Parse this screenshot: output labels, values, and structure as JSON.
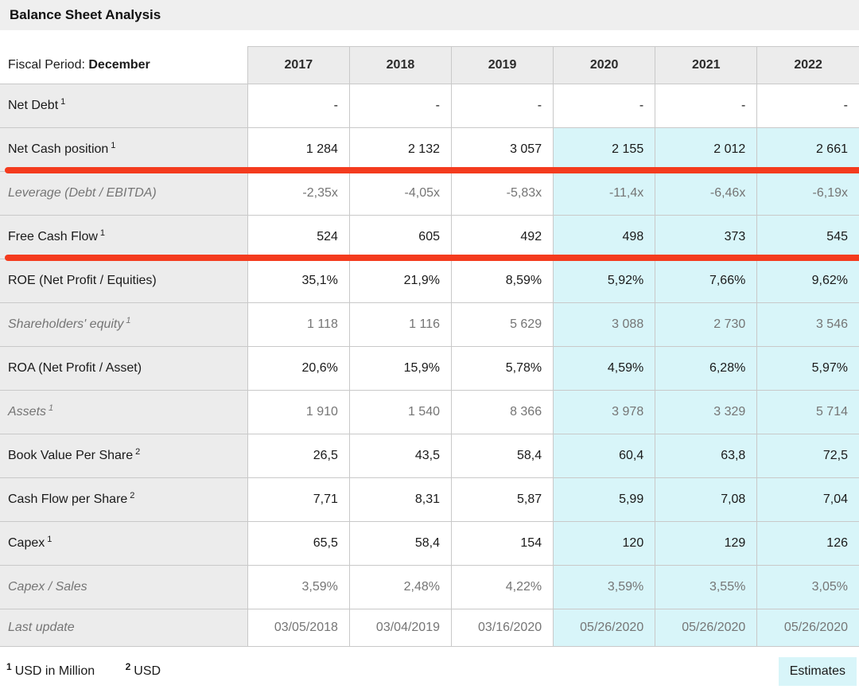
{
  "header": {
    "title": "Balance Sheet Analysis"
  },
  "table": {
    "fiscal_period_label": "Fiscal Period:",
    "fiscal_period_value": "December",
    "years": [
      "2017",
      "2018",
      "2019",
      "2020",
      "2021",
      "2022"
    ],
    "estimate_start_col": 3,
    "rows": [
      {
        "label": "Net Debt",
        "footnote_marker": "1",
        "muted": false,
        "estimate_highlight": false,
        "red_underline": false,
        "values": [
          "-",
          "-",
          "-",
          "-",
          "-",
          "-"
        ]
      },
      {
        "label": "Net Cash position",
        "footnote_marker": "1",
        "muted": false,
        "estimate_highlight": true,
        "red_underline": true,
        "values": [
          "1 284",
          "2 132",
          "3 057",
          "2 155",
          "2 012",
          "2 661"
        ]
      },
      {
        "label": "Leverage (Debt / EBITDA)",
        "footnote_marker": "",
        "muted": true,
        "estimate_highlight": true,
        "red_underline": false,
        "values": [
          "-2,35x",
          "-4,05x",
          "-5,83x",
          "-11,4x",
          "-6,46x",
          "-6,19x"
        ]
      },
      {
        "label": "Free Cash Flow",
        "footnote_marker": "1",
        "muted": false,
        "estimate_highlight": true,
        "red_underline": true,
        "values": [
          "524",
          "605",
          "492",
          "498",
          "373",
          "545"
        ]
      },
      {
        "label": "ROE (Net Profit / Equities)",
        "footnote_marker": "",
        "muted": false,
        "estimate_highlight": true,
        "red_underline": false,
        "values": [
          "35,1%",
          "21,9%",
          "8,59%",
          "5,92%",
          "7,66%",
          "9,62%"
        ]
      },
      {
        "label": "Shareholders' equity",
        "footnote_marker": "1",
        "muted": true,
        "estimate_highlight": true,
        "red_underline": false,
        "values": [
          "1 118",
          "1 116",
          "5 629",
          "3 088",
          "2 730",
          "3 546"
        ]
      },
      {
        "label": "ROA (Net Profit / Asset)",
        "footnote_marker": "",
        "muted": false,
        "estimate_highlight": true,
        "red_underline": false,
        "values": [
          "20,6%",
          "15,9%",
          "5,78%",
          "4,59%",
          "6,28%",
          "5,97%"
        ]
      },
      {
        "label": "Assets",
        "footnote_marker": "1",
        "muted": true,
        "estimate_highlight": true,
        "red_underline": false,
        "values": [
          "1 910",
          "1 540",
          "8 366",
          "3 978",
          "3 329",
          "5 714"
        ]
      },
      {
        "label": "Book Value Per Share",
        "footnote_marker": "2",
        "muted": false,
        "estimate_highlight": true,
        "red_underline": false,
        "values": [
          "26,5",
          "43,5",
          "58,4",
          "60,4",
          "63,8",
          "72,5"
        ]
      },
      {
        "label": "Cash Flow per Share",
        "footnote_marker": "2",
        "muted": false,
        "estimate_highlight": true,
        "red_underline": false,
        "values": [
          "7,71",
          "8,31",
          "5,87",
          "5,99",
          "7,08",
          "7,04"
        ]
      },
      {
        "label": "Capex",
        "footnote_marker": "1",
        "muted": false,
        "estimate_highlight": true,
        "red_underline": false,
        "values": [
          "65,5",
          "58,4",
          "154",
          "120",
          "129",
          "126"
        ]
      },
      {
        "label": "Capex / Sales",
        "footnote_marker": "",
        "muted": true,
        "estimate_highlight": true,
        "red_underline": false,
        "values": [
          "3,59%",
          "2,48%",
          "4,22%",
          "3,59%",
          "3,55%",
          "3,05%"
        ]
      },
      {
        "label": "Last update",
        "footnote_marker": "",
        "muted": true,
        "estimate_highlight": true,
        "red_underline": false,
        "values": [
          "03/05/2018",
          "03/04/2019",
          "03/16/2020",
          "05/26/2020",
          "05/26/2020",
          "05/26/2020"
        ]
      }
    ]
  },
  "footnotes": [
    {
      "marker": "1",
      "text": "USD in Million"
    },
    {
      "marker": "2",
      "text": "USD"
    }
  ],
  "legend": {
    "estimates_label": "Estimates"
  },
  "colors": {
    "title_bar_bg": "#efefef",
    "header_cell_bg": "#ececec",
    "label_cell_bg": "#ececec",
    "estimate_cell_bg": "#d8f5f9",
    "annotation_red": "#f43b1e",
    "muted_text": "#757575",
    "border": "#c9c9c9"
  }
}
